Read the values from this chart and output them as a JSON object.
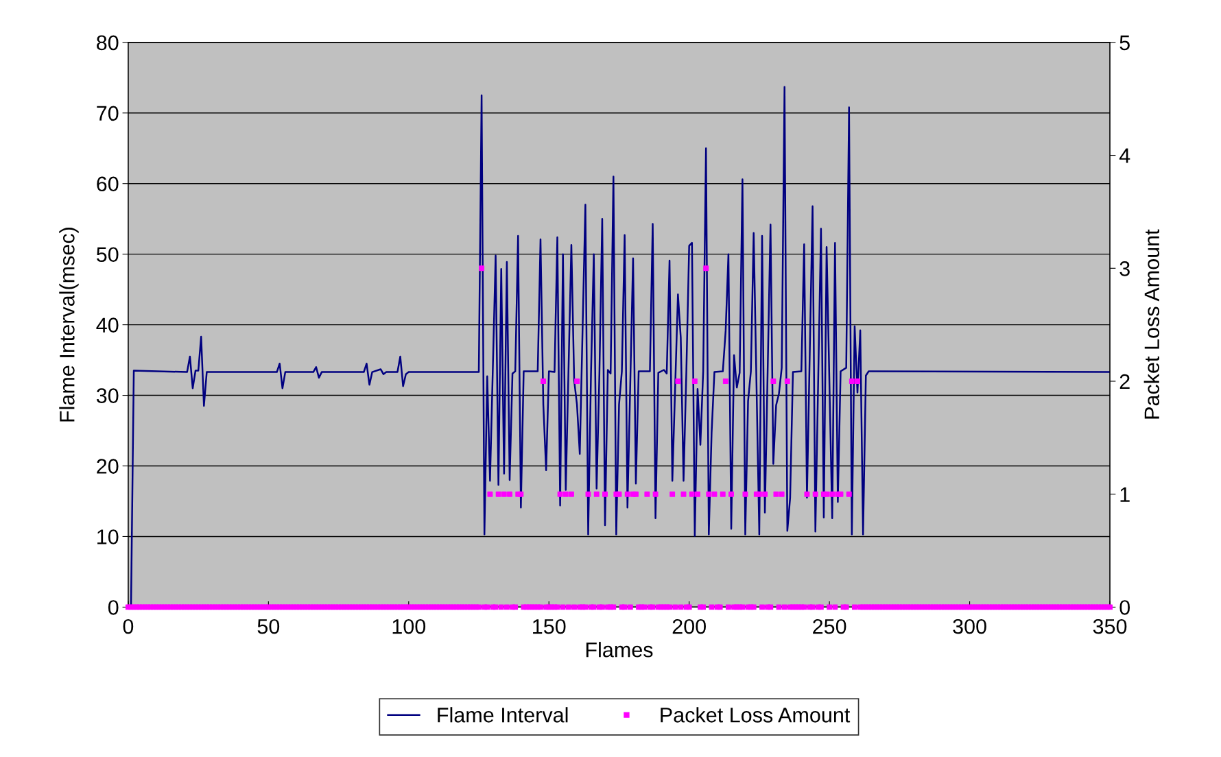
{
  "chart_data": {
    "type": "line",
    "xlabel": "Flames",
    "ylabel": "Flame Interval(msec)",
    "y2label": "Packet Loss Amount",
    "xlim": [
      0,
      350
    ],
    "xticks": [
      0,
      50,
      100,
      150,
      200,
      250,
      300,
      350
    ],
    "ylim": [
      0,
      80
    ],
    "yticks": [
      0,
      10,
      20,
      30,
      40,
      50,
      60,
      70,
      80
    ],
    "y2lim": [
      0,
      5
    ],
    "y2ticks": [
      0,
      1,
      2,
      3,
      4,
      5
    ],
    "grid": "y",
    "legend": "bottom",
    "x": [
      0,
      1,
      2,
      3,
      4,
      5,
      6,
      7,
      8,
      9,
      10,
      11,
      12,
      13,
      14,
      15,
      16,
      17,
      18,
      19,
      20,
      21,
      22,
      23,
      24,
      25,
      26,
      27,
      28,
      29,
      30,
      31,
      32,
      33,
      34,
      35,
      36,
      37,
      38,
      39,
      40,
      41,
      42,
      43,
      44,
      45,
      46,
      47,
      48,
      49,
      50,
      51,
      52,
      53,
      54,
      55,
      56,
      57,
      58,
      59,
      60,
      61,
      62,
      63,
      64,
      65,
      66,
      67,
      68,
      69,
      70,
      71,
      72,
      73,
      74,
      75,
      76,
      77,
      78,
      79,
      80,
      81,
      82,
      83,
      84,
      85,
      86,
      87,
      88,
      89,
      90,
      91,
      92,
      93,
      94,
      95,
      96,
      97,
      98,
      99,
      100,
      101,
      102,
      103,
      104,
      105,
      106,
      107,
      108,
      109,
      110,
      111,
      112,
      113,
      114,
      115,
      116,
      117,
      118,
      119,
      120,
      121,
      122,
      123,
      124,
      125,
      126,
      127,
      128,
      129,
      130,
      131,
      132,
      133,
      134,
      135,
      136,
      137,
      138,
      139,
      140,
      141,
      142,
      143,
      144,
      145,
      146,
      147,
      148,
      149,
      150,
      151,
      152,
      153,
      154,
      155,
      156,
      157,
      158,
      159,
      160,
      161,
      162,
      163,
      164,
      165,
      166,
      167,
      168,
      169,
      170,
      171,
      172,
      173,
      174,
      175,
      176,
      177,
      178,
      179,
      180,
      181,
      182,
      183,
      184,
      185,
      186,
      187,
      188,
      189,
      190,
      191,
      192,
      193,
      194,
      195,
      196,
      197,
      198,
      199,
      200,
      201,
      202,
      203,
      204,
      205,
      206,
      207,
      208,
      209,
      210,
      211,
      212,
      213,
      214,
      215,
      216,
      217,
      218,
      219,
      220,
      221,
      222,
      223,
      224,
      225,
      226,
      227,
      228,
      229,
      230,
      231,
      232,
      233,
      234,
      235,
      236,
      237,
      238,
      239,
      240,
      241,
      242,
      243,
      244,
      245,
      246,
      247,
      248,
      249,
      250,
      251,
      252,
      253,
      254,
      255,
      256,
      257,
      258,
      259,
      260,
      261,
      262,
      263,
      264,
      265,
      266,
      267,
      268,
      269,
      270,
      271,
      272,
      273,
      274,
      275,
      276,
      277,
      278,
      279,
      280,
      281,
      282,
      283,
      284,
      285,
      286,
      287,
      288,
      289,
      290,
      291,
      292,
      293,
      294,
      295,
      296,
      297,
      298,
      299,
      300,
      301,
      302,
      303,
      304,
      305,
      306,
      307,
      308,
      309,
      310,
      311,
      312,
      313,
      314,
      315,
      316,
      317,
      318,
      319,
      320,
      321,
      322,
      323,
      324,
      325,
      326,
      327,
      328,
      329,
      330,
      331,
      332,
      333,
      334,
      335,
      336,
      337,
      338,
      339,
      340,
      341,
      342,
      343,
      344,
      345,
      346,
      347,
      348,
      349,
      350
    ],
    "series": [
      {
        "name": "Flame Interval",
        "color": "#000080",
        "marker": "none",
        "line_style": "solid",
        "x": [
          1,
          2,
          21,
          22,
          23,
          24,
          25,
          26,
          27,
          28,
          53,
          54,
          55,
          56,
          66,
          67,
          68,
          69,
          84,
          85,
          86,
          87,
          90,
          91,
          92,
          96,
          97,
          98,
          99,
          100,
          125,
          126,
          127,
          128,
          129,
          131,
          132,
          133,
          134,
          135,
          136,
          137,
          138,
          139,
          140,
          141,
          146,
          147,
          148,
          149,
          150,
          152,
          153,
          154,
          155,
          156,
          158,
          159,
          160,
          161,
          163,
          164,
          165,
          166,
          167,
          168,
          169,
          170,
          171,
          172,
          173,
          174,
          175,
          176,
          177,
          178,
          179,
          180,
          181,
          182,
          186,
          187,
          188,
          189,
          191,
          192,
          193,
          194,
          196,
          197,
          198,
          199,
          200,
          201,
          202,
          203,
          204,
          205,
          206,
          207,
          208,
          209,
          212,
          213,
          214,
          215,
          216,
          217,
          218,
          219,
          220,
          221,
          222,
          223,
          225,
          226,
          227,
          229,
          230,
          231,
          232,
          233,
          234,
          235,
          236,
          237,
          240,
          241,
          242,
          244,
          245,
          247,
          248,
          249,
          251,
          252,
          253,
          254,
          256,
          257,
          258,
          259,
          260,
          261,
          262,
          263,
          264,
          350
        ],
        "values": [
          0,
          33.5,
          33.3,
          35.5,
          31,
          33.5,
          33.5,
          38.3,
          28.5,
          33.3,
          33.3,
          34.5,
          31,
          33.3,
          33.3,
          34,
          32.5,
          33.3,
          33.3,
          34.5,
          31.5,
          33.3,
          33.7,
          33,
          33.3,
          33.3,
          35.5,
          31.3,
          33,
          33.3,
          33.3,
          72.5,
          10.3,
          32.7,
          17.9,
          49.8,
          17.3,
          47.9,
          18.9,
          48.9,
          18,
          33.1,
          33.4,
          52.6,
          14.1,
          33.4,
          33.4,
          52.1,
          28.7,
          19.4,
          33.4,
          33.3,
          52.4,
          14.4,
          50,
          16.6,
          51.3,
          32.1,
          28.7,
          21.7,
          57,
          10.3,
          33.1,
          50,
          16.8,
          33.1,
          55,
          11.6,
          33.6,
          33.1,
          61,
          10.3,
          28.7,
          33.4,
          52.7,
          14.1,
          31.6,
          49.4,
          17.5,
          33.4,
          33.4,
          54.3,
          12.6,
          33.2,
          33.6,
          33.1,
          49.1,
          17.9,
          44.3,
          38.2,
          17.9,
          33.4,
          51.2,
          51.6,
          10.1,
          30.9,
          23,
          33.4,
          65,
          10.3,
          24.7,
          33.3,
          33.4,
          39.1,
          50,
          11.1,
          35.7,
          31.1,
          33.2,
          60.6,
          10.3,
          29.2,
          33.4,
          53,
          10.3,
          52.6,
          13.4,
          54.2,
          20.3,
          28.6,
          30.2,
          33.9,
          73.7,
          10.8,
          15.5,
          33.3,
          33.4,
          51.4,
          15.5,
          56.8,
          10.7,
          53.6,
          12.7,
          51,
          12.6,
          51.6,
          14.9,
          33.4,
          33.9,
          70.8,
          10.3,
          39.8,
          30.4,
          39.2,
          10.3,
          32.8,
          33.4,
          33.3
        ]
      },
      {
        "name": "Packet Loss Amount",
        "type": "scatter",
        "axis": "y2",
        "color": "#ff00ff",
        "marker": "square",
        "values": [
          0,
          0,
          0,
          0,
          0,
          0,
          0,
          0,
          0,
          0,
          0,
          0,
          0,
          0,
          0,
          0,
          0,
          0,
          0,
          0,
          0,
          0,
          0,
          0,
          0,
          0,
          0,
          0,
          0,
          0,
          0,
          0,
          0,
          0,
          0,
          0,
          0,
          0,
          0,
          0,
          0,
          0,
          0,
          0,
          0,
          0,
          0,
          0,
          0,
          0,
          0,
          0,
          0,
          0,
          0,
          0,
          0,
          0,
          0,
          0,
          0,
          0,
          0,
          0,
          0,
          0,
          0,
          0,
          0,
          0,
          0,
          0,
          0,
          0,
          0,
          0,
          0,
          0,
          0,
          0,
          0,
          0,
          0,
          0,
          0,
          0,
          0,
          0,
          0,
          0,
          0,
          0,
          0,
          0,
          0,
          0,
          0,
          0,
          0,
          0,
          0,
          0,
          0,
          0,
          0,
          0,
          0,
          0,
          0,
          0,
          0,
          0,
          0,
          0,
          0,
          0,
          0,
          0,
          0,
          0,
          0,
          0,
          0,
          0,
          0,
          0,
          3,
          0,
          0,
          1,
          0,
          0,
          1,
          0,
          1,
          0,
          1,
          0,
          0,
          1,
          1,
          0,
          0,
          0,
          0,
          0,
          0,
          0,
          2,
          0,
          0,
          0,
          0,
          0,
          1,
          0,
          1,
          0,
          1,
          0,
          2,
          0,
          0,
          0,
          1,
          0,
          0,
          1,
          0,
          0,
          1,
          0,
          0,
          0,
          1,
          1,
          0,
          0,
          1,
          0,
          1,
          1,
          0,
          0,
          0,
          1,
          0,
          0,
          1,
          0,
          0,
          0,
          0,
          0,
          1,
          0,
          2,
          0,
          1,
          0,
          0,
          1,
          2,
          1,
          0,
          0,
          3,
          1,
          0,
          1,
          0,
          0,
          1,
          2,
          0,
          1,
          0,
          0,
          0,
          0,
          1,
          0,
          0,
          0,
          1,
          1,
          0,
          1,
          0,
          0,
          2,
          1,
          0,
          1,
          0,
          2,
          0,
          0,
          0,
          0,
          0,
          0,
          1,
          0,
          0,
          1,
          0,
          0,
          1,
          1,
          0,
          1,
          0,
          1,
          1,
          0,
          0,
          1,
          2,
          0,
          2,
          0,
          0,
          0,
          0,
          0,
          0,
          0,
          0,
          0,
          0,
          0,
          0,
          0,
          0,
          0,
          0,
          0,
          0,
          0,
          0,
          0,
          0,
          0,
          0,
          0,
          0,
          0,
          0,
          0,
          0,
          0,
          0,
          0,
          0,
          0,
          0,
          0,
          0,
          0,
          0,
          0,
          0,
          0,
          0,
          0,
          0,
          0,
          0,
          0,
          0,
          0,
          0,
          0,
          0,
          0,
          0,
          0,
          0,
          0,
          0,
          0,
          0,
          0,
          0,
          0,
          0,
          0,
          0,
          0,
          0,
          0,
          0,
          0,
          0,
          0,
          0,
          0,
          0,
          0,
          0,
          0,
          0,
          0,
          0,
          0,
          0,
          0,
          0,
          0,
          0
        ]
      }
    ]
  }
}
